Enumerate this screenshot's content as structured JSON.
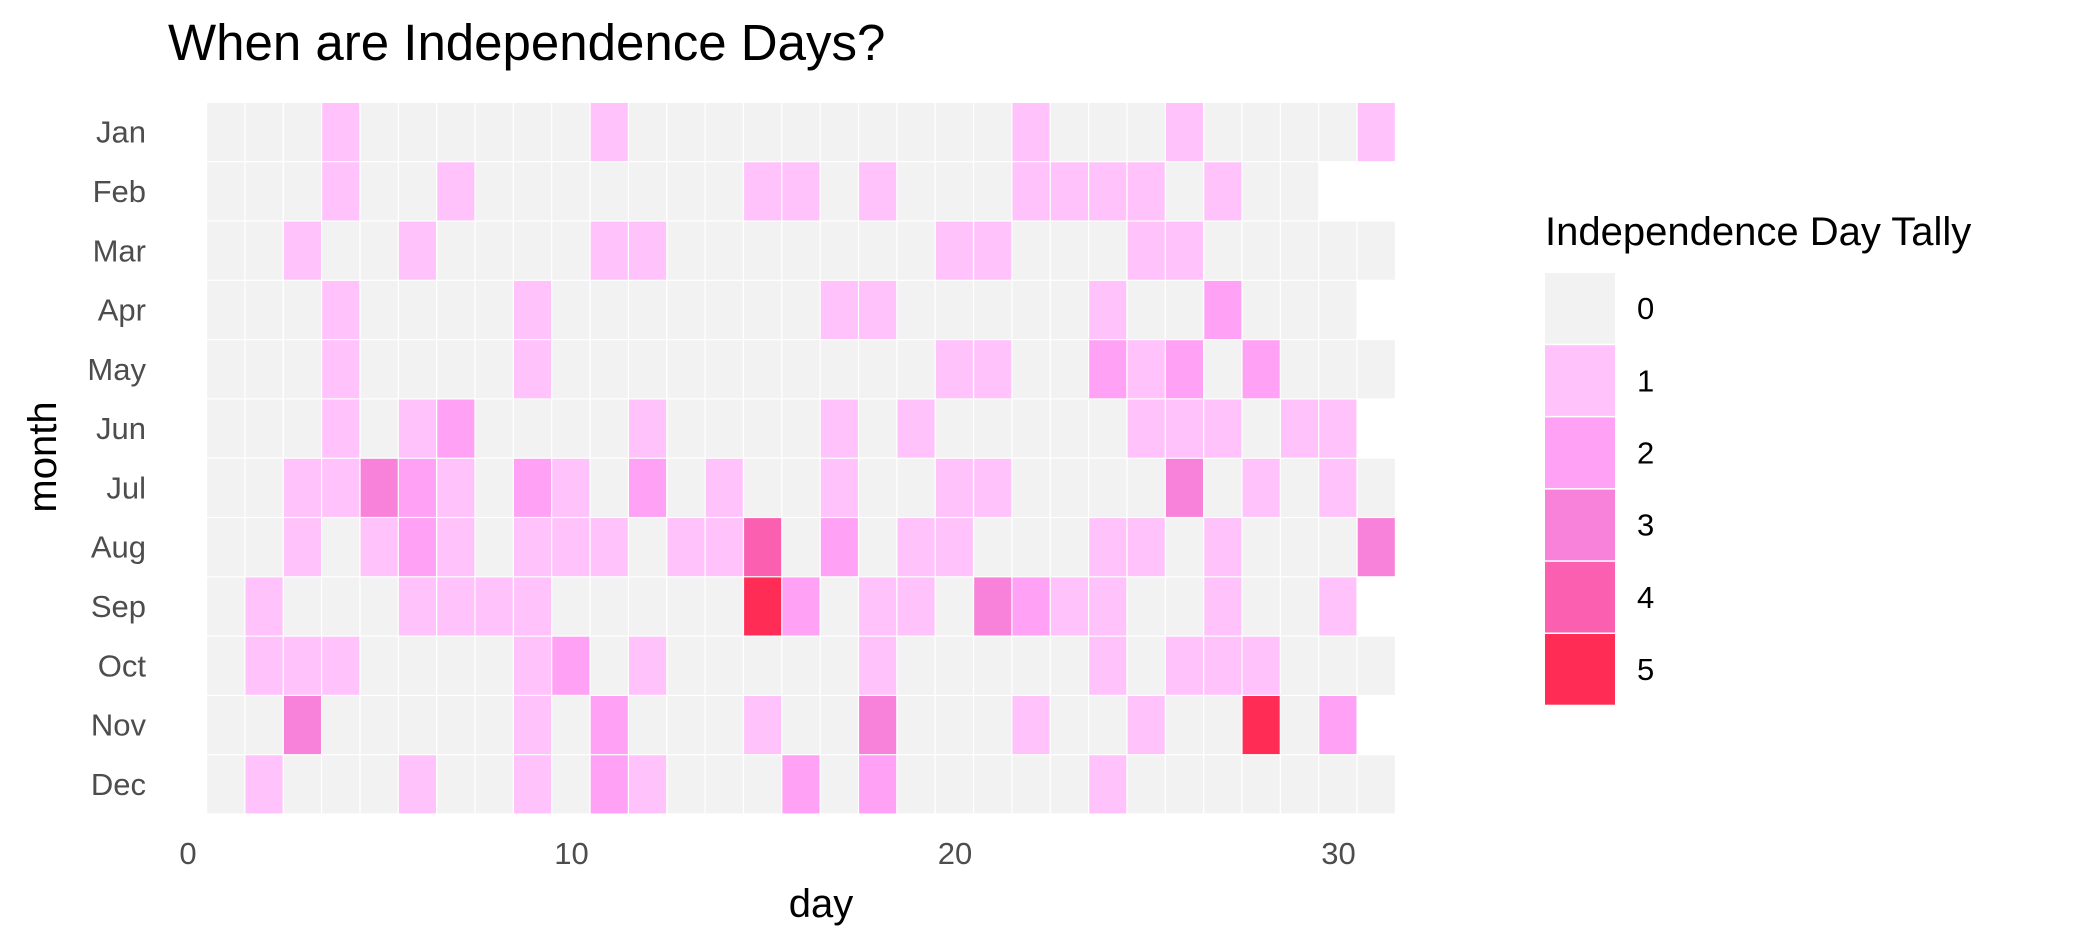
{
  "chart_data": {
    "type": "heatmap",
    "title": "When are Independence Days?",
    "xlabel": "day",
    "ylabel": "month",
    "xlim": [
      0,
      31.5
    ],
    "x_ticks": [
      0,
      10,
      20,
      30
    ],
    "months": [
      "Jan",
      "Feb",
      "Mar",
      "Apr",
      "May",
      "Jun",
      "Jul",
      "Aug",
      "Sep",
      "Oct",
      "Nov",
      "Dec"
    ],
    "days_in_month": [
      31,
      29,
      31,
      30,
      31,
      30,
      31,
      31,
      30,
      31,
      30,
      31
    ],
    "legend": {
      "title": "Independence Day Tally",
      "levels": [
        0,
        1,
        2,
        3,
        4,
        5
      ],
      "colors": [
        "#f2f2f2",
        "#ffc2fb",
        "#ffa1f4",
        "#f882d9",
        "#fa5fb0",
        "#ff2d55"
      ]
    },
    "grid": false,
    "legend_position": "right",
    "nonzero_tallies": {
      "Jan": {
        "4": 1,
        "11": 1,
        "22": 1,
        "26": 1,
        "31": 1
      },
      "Feb": {
        "4": 1,
        "7": 1,
        "15": 1,
        "16": 1,
        "18": 1,
        "22": 1,
        "23": 1,
        "24": 1,
        "25": 1,
        "27": 1
      },
      "Mar": {
        "3": 1,
        "6": 1,
        "11": 1,
        "12": 1,
        "20": 1,
        "21": 1,
        "25": 1,
        "26": 1
      },
      "Apr": {
        "4": 1,
        "9": 1,
        "17": 1,
        "18": 1,
        "24": 1,
        "27": 2
      },
      "May": {
        "4": 1,
        "9": 1,
        "20": 1,
        "21": 1,
        "24": 2,
        "25": 1,
        "26": 2,
        "28": 2
      },
      "Jun": {
        "4": 1,
        "6": 1,
        "7": 2,
        "12": 1,
        "17": 1,
        "19": 1,
        "25": 1,
        "26": 1,
        "27": 1,
        "29": 1,
        "30": 1
      },
      "Jul": {
        "3": 1,
        "4": 1,
        "5": 3,
        "6": 2,
        "7": 1,
        "9": 2,
        "10": 1,
        "12": 2,
        "14": 1,
        "17": 1,
        "20": 1,
        "21": 1,
        "26": 3,
        "28": 1,
        "30": 1
      },
      "Aug": {
        "3": 1,
        "5": 1,
        "6": 2,
        "7": 1,
        "9": 1,
        "10": 1,
        "11": 1,
        "13": 1,
        "14": 1,
        "15": 4,
        "17": 2,
        "19": 1,
        "20": 1,
        "24": 1,
        "25": 1,
        "27": 1,
        "31": 3
      },
      "Sep": {
        "2": 1,
        "6": 1,
        "7": 1,
        "8": 1,
        "9": 1,
        "15": 5,
        "16": 2,
        "18": 1,
        "19": 1,
        "21": 3,
        "22": 2,
        "23": 1,
        "24": 1,
        "27": 1,
        "30": 1
      },
      "Oct": {
        "2": 1,
        "3": 1,
        "4": 1,
        "9": 1,
        "10": 2,
        "12": 1,
        "18": 1,
        "24": 1,
        "26": 1,
        "27": 1,
        "28": 1
      },
      "Nov": {
        "3": 3,
        "9": 1,
        "11": 2,
        "15": 1,
        "18": 3,
        "22": 1,
        "25": 1,
        "28": 5,
        "30": 2
      },
      "Dec": {
        "2": 1,
        "6": 1,
        "9": 1,
        "11": 2,
        "12": 1,
        "16": 2,
        "18": 2,
        "24": 1
      }
    }
  }
}
